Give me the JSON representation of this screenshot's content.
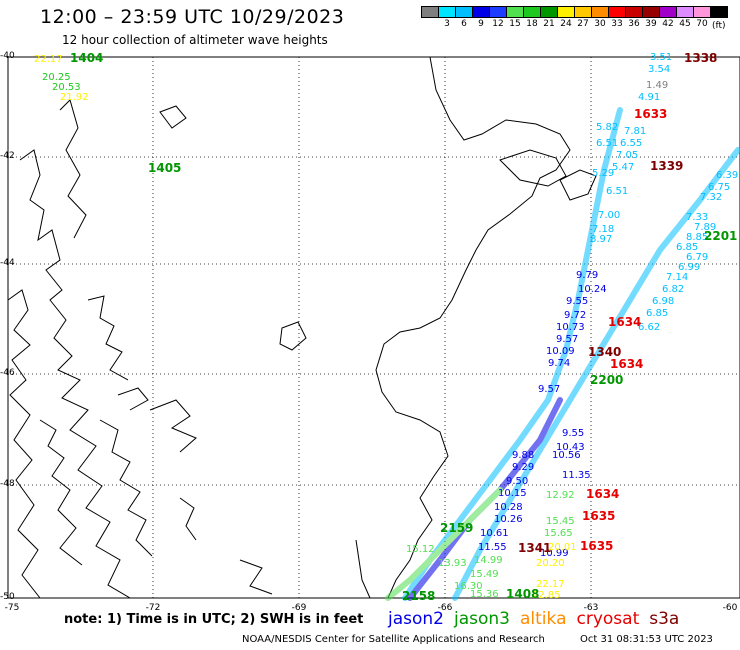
{
  "header": {
    "title": "12:00 – 23:59 UTC 10/29/2023",
    "subtitle": "12 hour collection of altimeter wave heights"
  },
  "colorbar": {
    "unit": "(ft)",
    "colors": [
      "#7f7f7f",
      "#00e5ff",
      "#00bfff",
      "#0000e6",
      "#1e3cff",
      "#50e050",
      "#1ec81e",
      "#009600",
      "#fff000",
      "#ffc800",
      "#ff8c00",
      "#ff0000",
      "#c80000",
      "#960000",
      "#a000c8",
      "#dc8cff",
      "#ff96dc",
      "#000000"
    ],
    "labels": [
      "3",
      "6",
      "9",
      "12",
      "15",
      "18",
      "21",
      "24",
      "27",
      "30",
      "33",
      "36",
      "39",
      "42",
      "45",
      "70"
    ]
  },
  "axes": {
    "lat_labels": [
      "-40",
      "-42",
      "-44",
      "-46",
      "-48",
      "-50"
    ],
    "lon_labels": [
      "-75",
      "-72",
      "-69",
      "-66",
      "-63",
      "-60"
    ]
  },
  "tracks": [
    {
      "name": "jason2",
      "color": "#0000e6"
    },
    {
      "name": "jason3",
      "color": "#009600"
    },
    {
      "name": "altika",
      "color": "#ff8c00"
    },
    {
      "name": "cryosat",
      "color": "#e60000"
    },
    {
      "name": "s3a",
      "color": "#7f0000"
    }
  ],
  "time_labels": [
    {
      "text": "1404",
      "color": "#009600"
    },
    {
      "text": "1405",
      "color": "#009600"
    },
    {
      "text": "1338",
      "color": "#7f0000"
    },
    {
      "text": "1633",
      "color": "#e60000"
    },
    {
      "text": "1339",
      "color": "#7f0000"
    },
    {
      "text": "2201",
      "color": "#009600"
    },
    {
      "text": "1634",
      "color": "#e60000"
    },
    {
      "text": "1340",
      "color": "#7f0000"
    },
    {
      "text": "1634",
      "color": "#e60000"
    },
    {
      "text": "2200",
      "color": "#009600"
    },
    {
      "text": "1634",
      "color": "#e60000"
    },
    {
      "text": "1635",
      "color": "#e60000"
    },
    {
      "text": "1635",
      "color": "#e60000"
    },
    {
      "text": "1341",
      "color": "#7f0000"
    },
    {
      "text": "2159",
      "color": "#009600"
    },
    {
      "text": "2158",
      "color": "#009600"
    },
    {
      "text": "1408",
      "color": "#009600"
    }
  ],
  "wave_samples": [
    {
      "text": "3.51",
      "color": "#00bfff"
    },
    {
      "text": "3.54",
      "color": "#00bfff"
    },
    {
      "text": "1.49",
      "color": "#7f7f7f"
    },
    {
      "text": "4.91",
      "color": "#00bfff"
    },
    {
      "text": "5.82",
      "color": "#00bfff"
    },
    {
      "text": "7.81",
      "color": "#00bfff"
    },
    {
      "text": "6.51",
      "color": "#00bfff"
    },
    {
      "text": "6.55",
      "color": "#00bfff"
    },
    {
      "text": "7.05",
      "color": "#00bfff"
    },
    {
      "text": "5.47",
      "color": "#00bfff"
    },
    {
      "text": "5.29",
      "color": "#00bfff"
    },
    {
      "text": "6.51",
      "color": "#00bfff"
    },
    {
      "text": "7.00",
      "color": "#00bfff"
    },
    {
      "text": "7.18",
      "color": "#00bfff"
    },
    {
      "text": "8.97",
      "color": "#00bfff"
    },
    {
      "text": "7.89",
      "color": "#00bfff"
    },
    {
      "text": "8.85",
      "color": "#00bfff"
    },
    {
      "text": "6.85",
      "color": "#00bfff"
    },
    {
      "text": "6.79",
      "color": "#00bfff"
    },
    {
      "text": "6.99",
      "color": "#00bfff"
    },
    {
      "text": "7.14",
      "color": "#00bfff"
    },
    {
      "text": "6.82",
      "color": "#00bfff"
    },
    {
      "text": "6.98",
      "color": "#00bfff"
    },
    {
      "text": "6.85",
      "color": "#00bfff"
    },
    {
      "text": "6.62",
      "color": "#00bfff"
    },
    {
      "text": "7.33",
      "color": "#00bfff"
    },
    {
      "text": "7.32",
      "color": "#00bfff"
    },
    {
      "text": "6.75",
      "color": "#00bfff"
    },
    {
      "text": "6.39",
      "color": "#00bfff"
    },
    {
      "text": "9.79",
      "color": "#0000e6"
    },
    {
      "text": "10.24",
      "color": "#0000e6"
    },
    {
      "text": "9.55",
      "color": "#0000e6"
    },
    {
      "text": "9.72",
      "color": "#0000e6"
    },
    {
      "text": "10.73",
      "color": "#0000e6"
    },
    {
      "text": "9.57",
      "color": "#0000e6"
    },
    {
      "text": "10.09",
      "color": "#0000e6"
    },
    {
      "text": "9.74",
      "color": "#0000e6"
    },
    {
      "text": "9.57",
      "color": "#0000e6"
    },
    {
      "text": "9.55",
      "color": "#0000e6"
    },
    {
      "text": "10.43",
      "color": "#0000e6"
    },
    {
      "text": "10.56",
      "color": "#0000e6"
    },
    {
      "text": "9.88",
      "color": "#0000e6"
    },
    {
      "text": "9.29",
      "color": "#0000e6"
    },
    {
      "text": "11.35",
      "color": "#0000e6"
    },
    {
      "text": "9.50",
      "color": "#0000e6"
    },
    {
      "text": "10.15",
      "color": "#0000e6"
    },
    {
      "text": "10.28",
      "color": "#0000e6"
    },
    {
      "text": "10.26",
      "color": "#0000e6"
    },
    {
      "text": "10.61",
      "color": "#0000e6"
    },
    {
      "text": "11.55",
      "color": "#0000e6"
    },
    {
      "text": "10.99",
      "color": "#0000e6"
    },
    {
      "text": "12.92",
      "color": "#50e050"
    },
    {
      "text": "15.45",
      "color": "#50e050"
    },
    {
      "text": "15.65",
      "color": "#50e050"
    },
    {
      "text": "15.12",
      "color": "#50e050"
    },
    {
      "text": "13.93",
      "color": "#50e050"
    },
    {
      "text": "14.99",
      "color": "#50e050"
    },
    {
      "text": "15.49",
      "color": "#50e050"
    },
    {
      "text": "16.30",
      "color": "#50e050"
    },
    {
      "text": "15.36",
      "color": "#50e050"
    },
    {
      "text": "20.01",
      "color": "#fff000"
    },
    {
      "text": "20.20",
      "color": "#fff000"
    },
    {
      "text": "22.17",
      "color": "#fff000"
    },
    {
      "text": "22.85",
      "color": "#fff000"
    },
    {
      "text": "20.25",
      "color": "#1ec81e"
    },
    {
      "text": "20.53",
      "color": "#1ec81e"
    },
    {
      "text": "22.17",
      "color": "#fff000"
    },
    {
      "text": "21.92",
      "color": "#fff000"
    }
  ],
  "footer": {
    "note": "note:  1) Time is in UTC; 2) SWH is in feet",
    "credit": "NOAA/NESDIS Center for Satellite Applications and Research",
    "timestamp": "Oct 31 08:31:53 UTC 2023"
  }
}
